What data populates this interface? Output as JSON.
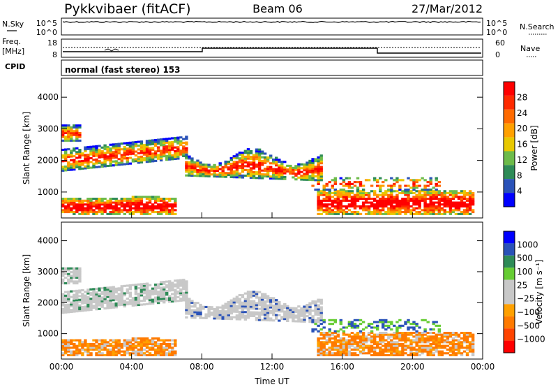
{
  "header": {
    "station": "Pykkvibaer (fitACF)",
    "beam": "Beam 06",
    "date": "27/Mar/2012"
  },
  "labels": {
    "nsky": "N.Sky",
    "freq": "Freq.",
    "freq_unit": "[MHz]",
    "cpid": "CPID",
    "nsearch": "N.Search",
    "nave": "Nave",
    "mode": "normal (fast stereo) 153",
    "nsky_hi": "10^5",
    "nsky_lo": "10^0",
    "freq_hi": "18",
    "freq_lo": "8",
    "nave_hi": "60",
    "nave_lo": "0"
  },
  "colors": {
    "power": [
      "#0000ff",
      "#2a52b8",
      "#2e8b57",
      "#6dbb4a",
      "#e8c800",
      "#ffa000",
      "#ff6a00",
      "#ff2a00",
      "#ff0000"
    ],
    "velocity": [
      "#ff0000",
      "#ff4400",
      "#ff7a00",
      "#ffa000",
      "#c8c8c8",
      "#c8c8c8",
      "#66cc33",
      "#2e8b57",
      "#2a52b8",
      "#0000ff"
    ]
  },
  "chart_data": [
    {
      "type": "heatmap",
      "name": "power",
      "xlabel": "Time UT",
      "ylabel": "Slant Range [km]",
      "x_ticks": [
        "00:00",
        "04:00",
        "08:00",
        "12:00",
        "16:00",
        "20:00",
        "00:00"
      ],
      "xlim_hours": [
        0,
        24
      ],
      "ylim": [
        180,
        4600
      ],
      "y_ticks": [
        1000,
        2000,
        3000,
        4000
      ],
      "colorbar_label": "Power [dB]",
      "colorbar_ticks": [
        "4",
        "8",
        "12",
        "16",
        "20",
        "24",
        "28"
      ]
    },
    {
      "type": "heatmap",
      "name": "velocity",
      "xlabel": "Time UT",
      "ylabel": "Slant Range [km]",
      "x_ticks": [
        "00:00",
        "04:00",
        "08:00",
        "12:00",
        "16:00",
        "20:00",
        "00:00"
      ],
      "xlim_hours": [
        0,
        24
      ],
      "ylim": [
        180,
        4600
      ],
      "y_ticks": [
        1000,
        2000,
        3000,
        4000
      ],
      "colorbar_label": "Velocity [m s⁻¹]",
      "colorbar_ticks": [
        "1000",
        "500",
        "100",
        "25",
        "−25",
        "−100",
        "−500",
        "−1000"
      ]
    }
  ]
}
